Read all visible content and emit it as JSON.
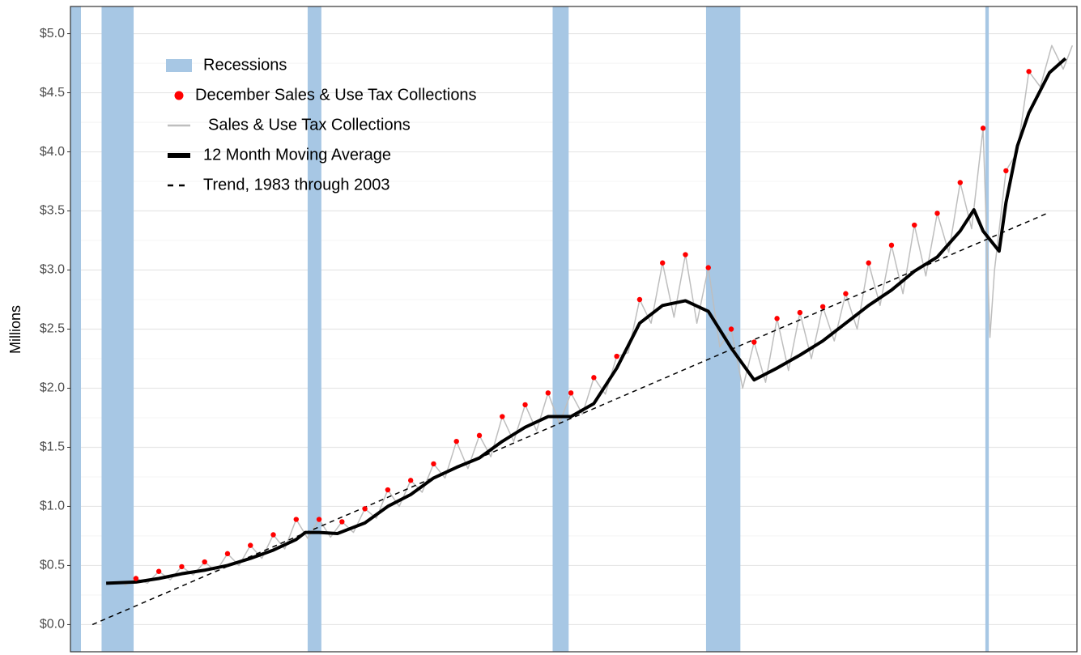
{
  "chart_data": {
    "type": "line",
    "y_label": "Millions",
    "xlim": [
      1980.14,
      2024.1
    ],
    "ylim": [
      -0.23,
      5.23
    ],
    "yticks": [
      {
        "value": 0,
        "label": "$0.0"
      },
      {
        "value": 0.5,
        "label": "$0.5"
      },
      {
        "value": 1,
        "label": "$1.0"
      },
      {
        "value": 1.5,
        "label": "$1.5"
      },
      {
        "value": 2,
        "label": "$2.0"
      },
      {
        "value": 2.5,
        "label": "$2.5"
      },
      {
        "value": 3,
        "label": "$3.0"
      },
      {
        "value": 3.5,
        "label": "$3.5"
      },
      {
        "value": 4,
        "label": "$4.0"
      },
      {
        "value": 4.5,
        "label": "$4.5"
      },
      {
        "value": 5,
        "label": "$5.0"
      }
    ],
    "grid": true,
    "recessions": {
      "name": "Recessions",
      "color": "#a7c7e4",
      "spans": [
        [
          1980.14,
          1980.6
        ],
        [
          1981.5,
          1982.9
        ],
        [
          1990.5,
          1991.1
        ],
        [
          2001.2,
          2001.9
        ],
        [
          2007.9,
          2009.4
        ],
        [
          2020.1,
          2020.25
        ]
      ]
    },
    "series": [
      {
        "name": "December Sales & Use Tax Collections",
        "color": "#ff0000",
        "style": "points",
        "x": [
          1983,
          1984,
          1985,
          1986,
          1987,
          1988,
          1989,
          1990,
          1991,
          1992,
          1993,
          1994,
          1995,
          1996,
          1997,
          1998,
          1999,
          2000,
          2001,
          2002,
          2003,
          2004,
          2005,
          2006,
          2007,
          2008,
          2009,
          2010,
          2011,
          2012,
          2013,
          2014,
          2015,
          2016,
          2017,
          2018,
          2019,
          2020,
          2021,
          2022
        ],
        "values": [
          0.39,
          0.45,
          0.49,
          0.53,
          0.6,
          0.67,
          0.76,
          0.89,
          0.89,
          0.87,
          0.98,
          1.14,
          1.22,
          1.36,
          1.55,
          1.6,
          1.76,
          1.86,
          1.96,
          1.96,
          2.09,
          2.27,
          2.75,
          3.06,
          3.13,
          3.02,
          2.5,
          2.39,
          2.59,
          2.64,
          2.69,
          2.8,
          3.06,
          3.21,
          3.38,
          3.48,
          3.74,
          4.2,
          3.84,
          4.68
        ]
      },
      {
        "name": "Sales & Use Tax Collections",
        "color": "#bebebe",
        "style": "line",
        "x": [
          1982.5,
          1983,
          1983.5,
          1984,
          1984.5,
          1985,
          1985.5,
          1986,
          1986.5,
          1987,
          1987.5,
          1988,
          1988.5,
          1989,
          1989.5,
          1990,
          1990.5,
          1991,
          1991.5,
          1992,
          1992.5,
          1993,
          1993.5,
          1994,
          1994.5,
          1995,
          1995.5,
          1996,
          1996.5,
          1997,
          1997.5,
          1998,
          1998.5,
          1999,
          1999.5,
          2000,
          2000.5,
          2001,
          2001.5,
          2002,
          2002.5,
          2003,
          2003.5,
          2004,
          2004.5,
          2005,
          2005.5,
          2006,
          2006.5,
          2007,
          2007.5,
          2008,
          2008.5,
          2009,
          2009.5,
          2010,
          2010.5,
          2011,
          2011.5,
          2012,
          2012.5,
          2013,
          2013.5,
          2014,
          2014.5,
          2015,
          2015.5,
          2016,
          2016.5,
          2017,
          2017.5,
          2018,
          2018.5,
          2019,
          2019.5,
          2020,
          2020.3,
          2020.5,
          2021,
          2021.5,
          2022,
          2022.5,
          2023,
          2023.5,
          2023.9
        ],
        "values": [
          0.33,
          0.39,
          0.35,
          0.45,
          0.38,
          0.49,
          0.42,
          0.53,
          0.45,
          0.6,
          0.5,
          0.67,
          0.56,
          0.76,
          0.64,
          0.89,
          0.73,
          0.89,
          0.74,
          0.87,
          0.78,
          0.98,
          0.9,
          1.14,
          1.0,
          1.22,
          1.12,
          1.36,
          1.24,
          1.55,
          1.32,
          1.6,
          1.42,
          1.76,
          1.55,
          1.86,
          1.64,
          1.96,
          1.7,
          1.96,
          1.78,
          2.09,
          1.95,
          2.27,
          2.3,
          2.75,
          2.55,
          3.06,
          2.6,
          3.13,
          2.55,
          3.02,
          2.35,
          2.5,
          2.0,
          2.39,
          2.05,
          2.59,
          2.15,
          2.64,
          2.25,
          2.69,
          2.4,
          2.8,
          2.5,
          3.06,
          2.7,
          3.21,
          2.8,
          3.38,
          2.95,
          3.48,
          3.15,
          3.74,
          3.35,
          4.2,
          2.43,
          3.0,
          3.84,
          4.0,
          4.68,
          4.55,
          4.9,
          4.7,
          4.9
        ]
      },
      {
        "name": "12 Month Moving Average",
        "color": "#000000",
        "style": "thick",
        "x": [
          1981.7,
          1983,
          1984,
          1985,
          1986,
          1987,
          1988,
          1989,
          1990,
          1990.4,
          1991,
          1991.8,
          1993,
          1994,
          1995,
          1996,
          1997,
          1998,
          1999,
          2000,
          2001,
          2002,
          2003,
          2004,
          2005,
          2006,
          2007,
          2008,
          2009,
          2010,
          2011,
          2012,
          2013,
          2014,
          2015,
          2016,
          2017,
          2018,
          2019,
          2019.6,
          2020,
          2020.7,
          2021,
          2021.5,
          2022,
          2022.9,
          2023.6
        ],
        "values": [
          0.35,
          0.36,
          0.39,
          0.43,
          0.46,
          0.5,
          0.56,
          0.63,
          0.72,
          0.78,
          0.78,
          0.77,
          0.86,
          1.0,
          1.1,
          1.24,
          1.33,
          1.41,
          1.55,
          1.67,
          1.76,
          1.76,
          1.87,
          2.17,
          2.55,
          2.7,
          2.74,
          2.65,
          2.34,
          2.07,
          2.17,
          2.28,
          2.4,
          2.55,
          2.7,
          2.83,
          2.99,
          3.11,
          3.33,
          3.51,
          3.33,
          3.16,
          3.57,
          4.05,
          4.33,
          4.67,
          4.79
        ]
      },
      {
        "name": "Trend, 1983 through 2003",
        "color": "#000000",
        "style": "dashed",
        "x": [
          1981.1,
          2022.8
        ],
        "values": [
          0,
          3.48
        ]
      }
    ]
  }
}
